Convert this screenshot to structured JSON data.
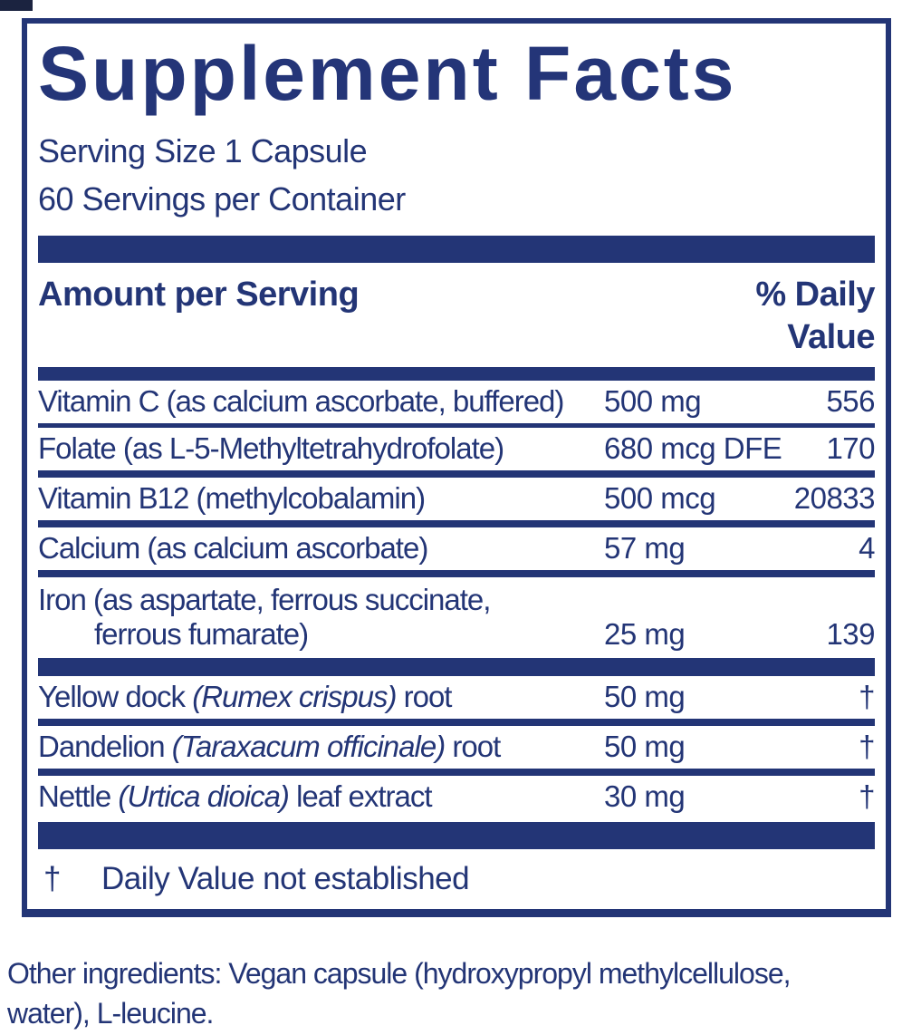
{
  "colors": {
    "navy": "#233576",
    "background": "#ffffff"
  },
  "title": "Supplement Facts",
  "serving": {
    "size_line": "Serving Size 1 Capsule",
    "servings_line": "60 Servings per Container"
  },
  "header": {
    "amount_label": "Amount per Serving",
    "dv_line1": "% Daily",
    "dv_line2": "Value"
  },
  "rows": [
    {
      "name": "Vitamin C (as calcium ascorbate, buffered)",
      "amount": "500 mg",
      "dv": "556"
    },
    {
      "name": "Folate (as L-5-Methyltetrahydrofolate)",
      "amount": "680 mcg DFE",
      "dv": "170"
    },
    {
      "name": "Vitamin B12 (methylcobalamin)",
      "amount": "500 mcg",
      "dv": "20833"
    },
    {
      "name": "Calcium (as calcium ascorbate)",
      "amount": "57 mg",
      "dv": "4"
    },
    {
      "name_line1": "Iron (as aspartate, ferrous succinate,",
      "name_line2": "ferrous fumarate)",
      "amount": "25 mg",
      "dv": "139"
    },
    {
      "name_pre": "Yellow dock ",
      "name_italic": "(Rumex crispus)",
      "name_post": " root",
      "amount": "50 mg",
      "dv": "†"
    },
    {
      "name_pre": "Dandelion ",
      "name_italic": "(Taraxacum officinale)",
      "name_post": " root",
      "amount": "50 mg",
      "dv": "†"
    },
    {
      "name_pre": "Nettle ",
      "name_italic": "(Urtica dioica)",
      "name_post": " leaf extract",
      "amount": "30 mg",
      "dv": "†"
    }
  ],
  "footnote": {
    "symbol": "†",
    "text": "Daily Value not established"
  },
  "other_ingredients": {
    "lines": [
      "Other ingredients: Vegan capsule (hydroxypropyl methylcellulose,",
      "water), L-leucine."
    ]
  }
}
